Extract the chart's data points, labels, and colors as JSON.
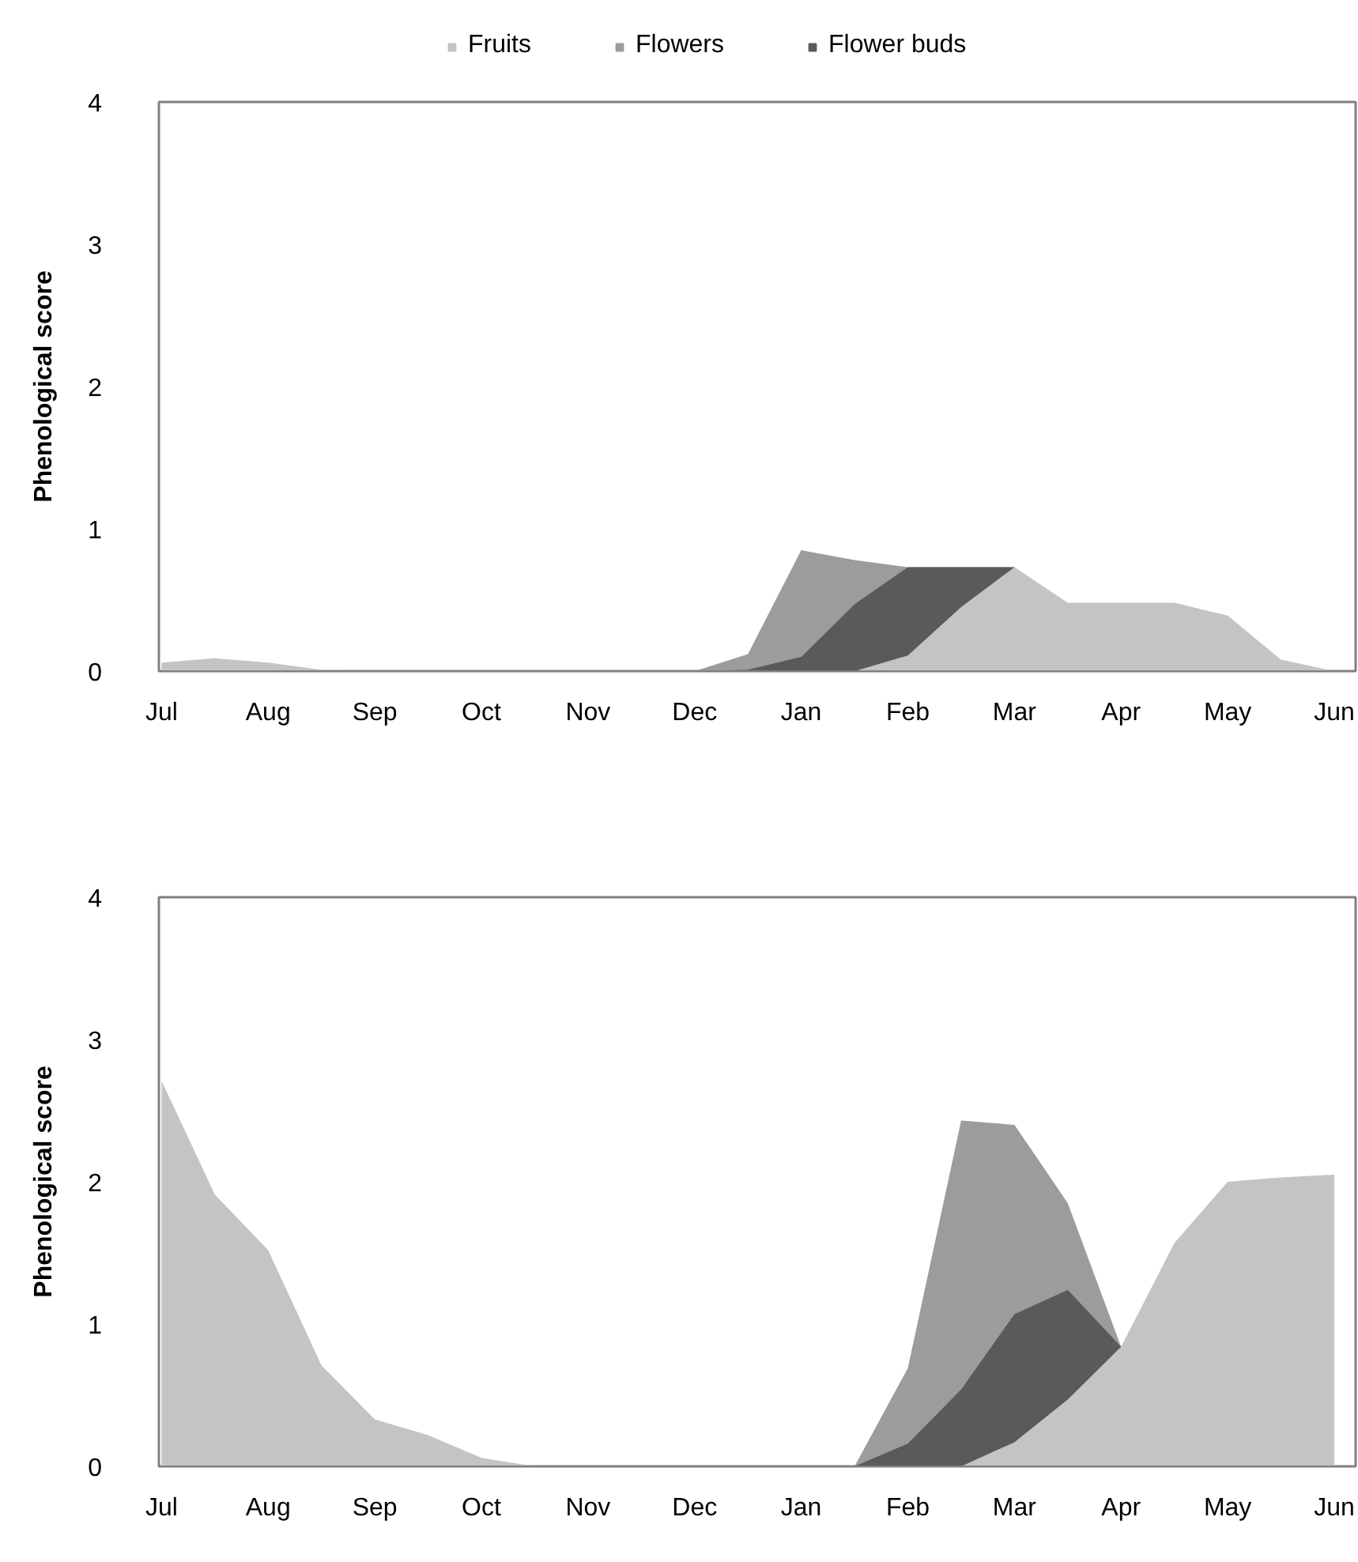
{
  "chart_data": [
    {
      "type": "area",
      "ylabel": "Phenological score",
      "legend": "top",
      "grid": false,
      "categories": [
        "Jul",
        null,
        "Aug",
        null,
        "Sep",
        null,
        "Oct",
        null,
        "Nov",
        null,
        "Dec",
        null,
        "Jan",
        null,
        "Feb",
        null,
        "Mar",
        null,
        "Apr",
        null,
        "May",
        null,
        "Jun"
      ],
      "ylim": [
        0,
        4
      ],
      "yticks": [
        0,
        1,
        2,
        3,
        4
      ],
      "series": [
        {
          "name": "Fruits",
          "color": "#c4c4c4",
          "values": [
            0.06,
            0.09,
            0.06,
            0.01,
            0,
            0,
            0,
            0,
            0,
            0,
            0,
            0,
            0,
            0,
            0.11,
            0.45,
            0.73,
            0.48,
            0.48,
            0.48,
            0.39,
            0.08,
            0
          ]
        },
        {
          "name": "Flowers",
          "color": "#9c9c9c",
          "values": [
            0,
            0,
            0,
            0,
            0,
            0,
            0,
            0,
            0,
            0,
            0,
            0.12,
            0.85,
            0.78,
            0.73,
            0.73,
            0.73,
            null,
            null,
            null,
            null,
            null,
            null
          ]
        },
        {
          "name": "Flower buds",
          "color": "#5a5a5a",
          "values": [
            0,
            0,
            0,
            0,
            0,
            0,
            0,
            0,
            0,
            0,
            0,
            0.01,
            0.1,
            0.47,
            0.73,
            0.73,
            0.73,
            null,
            null,
            null,
            null,
            null,
            null
          ]
        }
      ]
    },
    {
      "type": "area",
      "ylabel": "Phenological score",
      "grid": false,
      "categories": [
        "Jul",
        null,
        "Aug",
        null,
        "Sep",
        null,
        "Oct",
        null,
        "Nov",
        null,
        "Dec",
        null,
        "Jan",
        null,
        "Feb",
        null,
        "Mar",
        null,
        "Apr",
        null,
        "May",
        null,
        "Jun"
      ],
      "ylim": [
        0,
        4
      ],
      "yticks": [
        0,
        1,
        2,
        3,
        4
      ],
      "series": [
        {
          "color": "#c4c4c4",
          "values": [
            2.71,
            1.91,
            1.52,
            0.71,
            0.33,
            0.22,
            0.06,
            0,
            0,
            0,
            0,
            0,
            0,
            0,
            0,
            0,
            0.17,
            0.47,
            0.84,
            1.57,
            2.0,
            2.03,
            2.05
          ]
        },
        {
          "color": "#9c9c9c",
          "values": [
            0,
            0,
            0,
            0,
            0,
            0,
            0,
            0,
            0,
            0,
            0,
            0,
            0,
            0,
            0.69,
            2.43,
            2.4,
            1.85,
            0.84,
            null,
            null,
            null,
            null
          ]
        },
        {
          "color": "#5a5a5a",
          "values": [
            0,
            0,
            0,
            0,
            0,
            0,
            0,
            0,
            0,
            0,
            0,
            0,
            0,
            0,
            0.16,
            0.54,
            1.07,
            1.24,
            0.84,
            null,
            null,
            null,
            null
          ]
        }
      ]
    }
  ]
}
